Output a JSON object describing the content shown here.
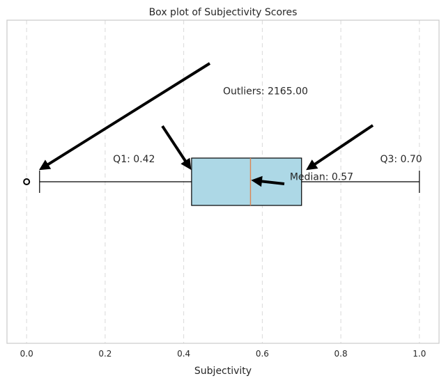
{
  "chart_data": {
    "type": "boxplot",
    "orientation": "horizontal",
    "title": "Box plot of Subjectivity Scores",
    "xlabel": "Subjectivity",
    "ylabel": "",
    "xlim": [
      -0.05,
      1.05
    ],
    "x_ticks": [
      0.0,
      0.2,
      0.4,
      0.6,
      0.8,
      1.0
    ],
    "x_tick_labels": [
      "0.0",
      "0.2",
      "0.4",
      "0.6",
      "0.8",
      "1.0"
    ],
    "grid": "vertical dashed",
    "box": {
      "whisker_low": 0.033,
      "q1": 0.42,
      "median": 0.57,
      "q3": 0.7,
      "whisker_high": 1.0,
      "outliers": [
        0.0
      ]
    },
    "annotations": [
      {
        "name": "outliers",
        "text": "Outliers: 2165.00",
        "text_pos": [
          0.5,
          0.77
        ],
        "target": [
          0.03,
          0.535
        ]
      },
      {
        "name": "q1",
        "text": "Q1: 0.42",
        "text_pos": [
          0.22,
          0.56
        ],
        "target": [
          0.42,
          0.535
        ]
      },
      {
        "name": "median",
        "text": "Median: 0.57",
        "text_pos": [
          0.67,
          0.505
        ],
        "target": [
          0.57,
          0.505
        ]
      },
      {
        "name": "q3",
        "text": "Q3: 0.70",
        "text_pos": [
          0.9,
          0.56
        ],
        "target": [
          0.71,
          0.535
        ]
      }
    ],
    "colors": {
      "box_fill": "#add8e6",
      "median_line": "#dd8452",
      "grid": "#d9d9d9",
      "frame": "#cccccc",
      "arrow": "#000000"
    }
  }
}
